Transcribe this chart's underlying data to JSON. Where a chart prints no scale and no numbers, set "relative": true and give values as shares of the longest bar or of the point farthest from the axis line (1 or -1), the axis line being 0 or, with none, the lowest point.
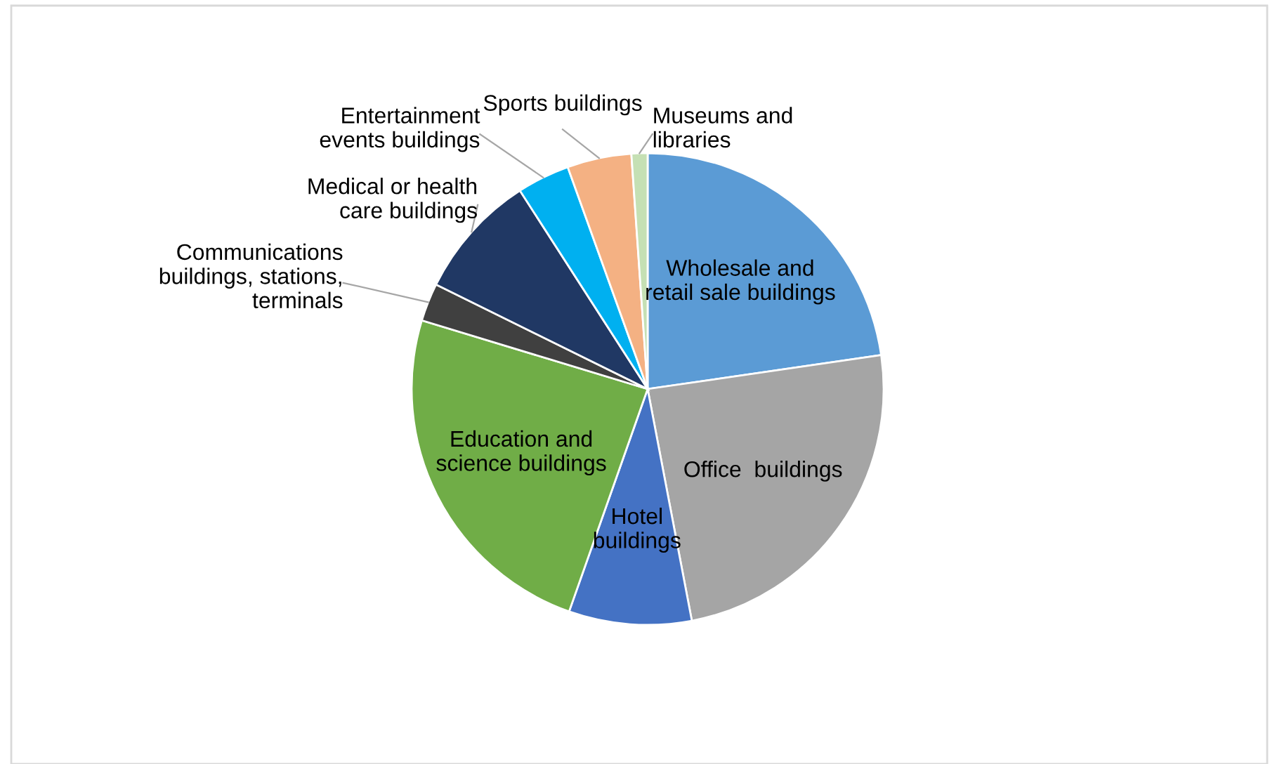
{
  "chart_data": {
    "type": "pie",
    "relative": true,
    "categories": [
      "Wholesale and\nretail sale buildings",
      "Office  buildings",
      "Hotel\nbuildings",
      "Education and\nscience buildings",
      "Communications\nbuildings, stations,\nterminals",
      "Medical or health\ncare buildings",
      "Entertainment\nevents buildings",
      "Sports buildings",
      "Museums and\nlibraries"
    ],
    "values": [
      22.7,
      24.3,
      8.4,
      24.3,
      2.6,
      8.6,
      3.6,
      4.4,
      1.1
    ],
    "colors": [
      "#5b9bd5",
      "#a5a5a5",
      "#4472c4",
      "#70ad47",
      "#404040",
      "#203864",
      "#00b0f0",
      "#f4b183",
      "#c5e0b4"
    ]
  }
}
